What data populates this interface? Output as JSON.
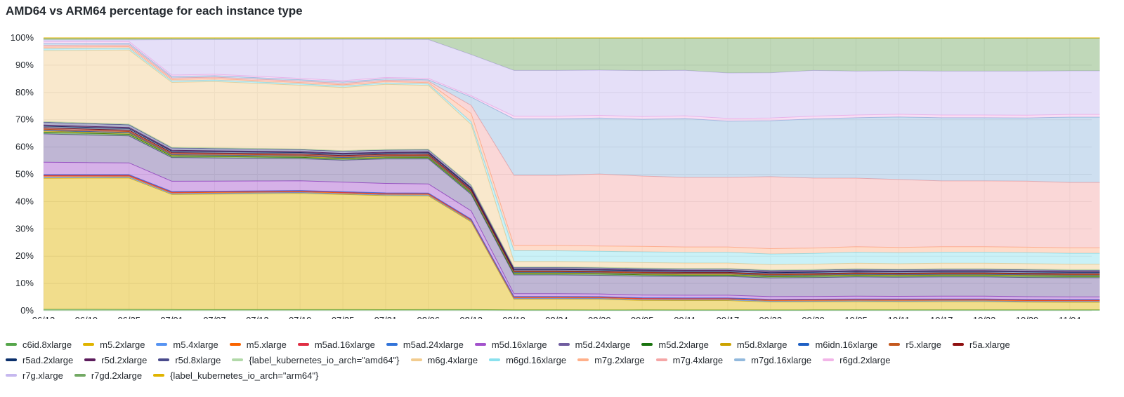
{
  "title": "AMD64 vs ARM64 percentage for each instance type",
  "chart_data": {
    "type": "area",
    "stacked": "percent",
    "title": "AMD64 vs ARM64 percentage for each instance type",
    "y_ticks": [
      "0%",
      "10%",
      "20%",
      "30%",
      "40%",
      "50%",
      "60%",
      "70%",
      "80%",
      "90%",
      "100%"
    ],
    "ylim": [
      0,
      100
    ],
    "x_ticks": [
      "06/13",
      "06/19",
      "06/25",
      "07/01",
      "07/07",
      "07/13",
      "07/19",
      "07/25",
      "07/31",
      "08/06",
      "08/12",
      "08/18",
      "08/24",
      "08/30",
      "09/05",
      "09/11",
      "09/17",
      "09/23",
      "09/29",
      "10/05",
      "10/11",
      "10/17",
      "10/23",
      "10/29",
      "11/04"
    ],
    "x": [
      0,
      1,
      2,
      3,
      4,
      5,
      6,
      7,
      8,
      9,
      10,
      11,
      12,
      13,
      14,
      15,
      16,
      17,
      18,
      19,
      20,
      21,
      22,
      23,
      24,
      24.7
    ],
    "grid": true,
    "legend_position": "bottom",
    "series": [
      {
        "name": "c6id.8xlarge",
        "color": "#56a64b",
        "values": [
          0.4,
          0.4,
          0.4,
          0.4,
          0.4,
          0.4,
          0.4,
          0.4,
          0.4,
          0.4,
          0.4,
          0.3,
          0.3,
          0.3,
          0.3,
          0.3,
          0.3,
          0.3,
          0.3,
          0.3,
          0.3,
          0.3,
          0.3,
          0.3,
          0.3,
          0.3
        ]
      },
      {
        "name": "m5.2xlarge",
        "color": "#e0b400",
        "values": [
          37,
          38,
          39,
          39,
          40,
          41,
          42,
          42,
          42,
          41,
          32,
          4,
          4,
          4,
          3.5,
          3.5,
          3.5,
          3,
          3,
          3,
          3,
          3,
          3,
          2.8,
          2.8,
          2.8
        ]
      },
      {
        "name": "m5.4xlarge",
        "color": "#5794f2",
        "values": [
          0.3,
          0.3,
          0.3,
          0.3,
          0.3,
          0.3,
          0.3,
          0.3,
          0.3,
          0.3,
          0.3,
          0.3,
          0.3,
          0.3,
          0.3,
          0.3,
          0.3,
          0.3,
          0.3,
          0.3,
          0.3,
          0.3,
          0.3,
          0.3,
          0.3,
          0.3
        ]
      },
      {
        "name": "m5.xlarge",
        "color": "#fa6400",
        "values": [
          0.3,
          0.3,
          0.3,
          0.3,
          0.3,
          0.3,
          0.3,
          0.3,
          0.3,
          0.3,
          0.3,
          0.3,
          0.3,
          0.3,
          0.3,
          0.3,
          0.3,
          0.3,
          0.3,
          0.3,
          0.3,
          0.3,
          0.3,
          0.3,
          0.3,
          0.3
        ]
      },
      {
        "name": "m5ad.16xlarge",
        "color": "#e02f44",
        "values": [
          0.2,
          0.2,
          0.2,
          0.2,
          0.2,
          0.2,
          0.2,
          0.2,
          0.2,
          0.2,
          0.2,
          0.2,
          0.2,
          0.2,
          0.2,
          0.2,
          0.2,
          0.2,
          0.2,
          0.2,
          0.2,
          0.2,
          0.2,
          0.2,
          0.2,
          0.2
        ]
      },
      {
        "name": "m5ad.24xlarge",
        "color": "#3274d9",
        "values": [
          0.2,
          0.2,
          0.2,
          0.2,
          0.2,
          0.2,
          0.2,
          0.2,
          0.2,
          0.2,
          0.2,
          0.2,
          0.2,
          0.2,
          0.2,
          0.2,
          0.2,
          0.2,
          0.2,
          0.2,
          0.2,
          0.2,
          0.2,
          0.2,
          0.2,
          0.2
        ]
      },
      {
        "name": "m5d.16xlarge",
        "color": "#a352cc",
        "values": [
          3.5,
          3.5,
          3.5,
          3.5,
          3.5,
          3.5,
          3.5,
          3.5,
          3.5,
          3.3,
          3,
          1,
          1,
          1,
          1,
          1,
          1,
          1,
          1,
          1,
          1,
          1,
          1,
          1,
          1,
          1
        ]
      },
      {
        "name": "m5d.24xlarge",
        "color": "#705da0",
        "values": [
          8,
          8,
          8,
          8,
          8,
          8,
          8,
          8,
          9,
          9,
          6,
          7,
          7,
          7,
          7,
          7,
          7,
          7,
          7,
          7,
          7,
          7,
          7,
          7,
          7,
          7
        ]
      },
      {
        "name": "m5d.2xlarge",
        "color": "#19730e",
        "values": [
          0.5,
          0.5,
          0.5,
          0.5,
          0.5,
          0.5,
          0.5,
          0.5,
          0.5,
          0.5,
          0.5,
          0.5,
          0.5,
          0.5,
          0.5,
          0.5,
          0.5,
          0.5,
          0.5,
          0.5,
          0.5,
          0.5,
          0.5,
          0.5,
          0.5,
          0.5
        ]
      },
      {
        "name": "m5d.8xlarge",
        "color": "#cca300",
        "values": [
          0.3,
          0.3,
          0.3,
          0.3,
          0.3,
          0.3,
          0.3,
          0.3,
          0.3,
          0.3,
          0.3,
          0.3,
          0.3,
          0.3,
          0.3,
          0.3,
          0.3,
          0.3,
          0.3,
          0.3,
          0.3,
          0.3,
          0.3,
          0.3,
          0.3,
          0.3
        ]
      },
      {
        "name": "m6idn.16xlarge",
        "color": "#1f60c4",
        "values": [
          0.2,
          0.2,
          0.2,
          0.2,
          0.2,
          0.2,
          0.2,
          0.2,
          0.2,
          0.2,
          0.2,
          0.2,
          0.2,
          0.2,
          0.2,
          0.2,
          0.2,
          0.2,
          0.2,
          0.2,
          0.2,
          0.2,
          0.2,
          0.2,
          0.2,
          0.2
        ]
      },
      {
        "name": "r5.xlarge",
        "color": "#c4591f",
        "values": [
          0.3,
          0.3,
          0.3,
          0.3,
          0.3,
          0.3,
          0.3,
          0.3,
          0.3,
          0.3,
          0.3,
          0.2,
          0.2,
          0.2,
          0.2,
          0.2,
          0.2,
          0.2,
          0.2,
          0.2,
          0.2,
          0.2,
          0.2,
          0.2,
          0.2,
          0.2
        ]
      },
      {
        "name": "r5a.xlarge",
        "color": "#8f1010",
        "values": [
          0.4,
          0.4,
          0.4,
          0.4,
          0.4,
          0.4,
          0.4,
          0.4,
          0.4,
          0.4,
          0.4,
          0.3,
          0.3,
          0.3,
          0.3,
          0.3,
          0.3,
          0.3,
          0.3,
          0.3,
          0.3,
          0.3,
          0.3,
          0.3,
          0.3,
          0.3
        ]
      },
      {
        "name": "r5ad.2xlarge",
        "color": "#0a2f6b",
        "values": [
          0.5,
          0.5,
          0.5,
          0.5,
          0.5,
          0.5,
          0.5,
          0.5,
          0.5,
          0.5,
          0.5,
          0.5,
          0.5,
          0.5,
          0.5,
          0.5,
          0.5,
          0.5,
          0.5,
          0.5,
          0.5,
          0.5,
          0.5,
          0.5,
          0.5,
          0.5
        ]
      },
      {
        "name": "r5d.2xlarge",
        "color": "#5c1c5c",
        "values": [
          0.3,
          0.3,
          0.3,
          0.3,
          0.3,
          0.3,
          0.3,
          0.3,
          0.3,
          0.3,
          0.3,
          0.3,
          0.3,
          0.3,
          0.3,
          0.3,
          0.3,
          0.3,
          0.3,
          0.3,
          0.3,
          0.3,
          0.3,
          0.3,
          0.3,
          0.3
        ]
      },
      {
        "name": "r5d.8xlarge",
        "color": "#4a4b8c",
        "values": [
          0.8,
          0.8,
          0.8,
          0.8,
          0.8,
          0.8,
          0.8,
          0.8,
          0.8,
          0.8,
          0.8,
          0.5,
          0.5,
          0.5,
          0.5,
          0.5,
          0.5,
          0.5,
          0.5,
          0.5,
          0.5,
          0.5,
          0.5,
          0.5,
          0.5,
          0.5
        ]
      },
      {
        "name": "{label_kubernetes_io_arch=\"amd64\"}",
        "color": "#b2d9a9",
        "values": [
          0.2,
          0.2,
          0.2,
          0.2,
          0.2,
          0.2,
          0.2,
          0.2,
          0.2,
          0.2,
          0.2,
          0.2,
          0.2,
          0.2,
          0.2,
          0.2,
          0.2,
          0.2,
          0.2,
          0.2,
          0.2,
          0.2,
          0.2,
          0.2,
          0.2,
          0.2
        ]
      },
      {
        "name": "m6g.4xlarge",
        "color": "#f2cc8f",
        "values": [
          20,
          21,
          22,
          22,
          23,
          23,
          23,
          23,
          24,
          23,
          22,
          2,
          2,
          2,
          2,
          2,
          2,
          2,
          2,
          2,
          2,
          2,
          2,
          2,
          2,
          2
        ]
      },
      {
        "name": "m6gd.16xlarge",
        "color": "#8ae1ee",
        "values": [
          0.5,
          0.5,
          0.5,
          0.5,
          0.5,
          0.5,
          0.5,
          0.5,
          0.5,
          0.5,
          1,
          4,
          4,
          4,
          4,
          4,
          4,
          4,
          4,
          4,
          4,
          4,
          4,
          4,
          4,
          4
        ]
      },
      {
        "name": "m7g.2xlarge",
        "color": "#ffb08a",
        "values": [
          0.5,
          0.5,
          0.5,
          0.5,
          0.5,
          0.5,
          0.5,
          0.5,
          0.5,
          0.5,
          3,
          2,
          2,
          2,
          2,
          2,
          2,
          2,
          2,
          2,
          2,
          2,
          2,
          2,
          2,
          2
        ]
      },
      {
        "name": "m7g.4xlarge",
        "color": "#f5a6a6",
        "values": [
          0.5,
          0.5,
          0.5,
          0.5,
          0.5,
          0.5,
          0.5,
          0.5,
          0.5,
          0.5,
          3,
          26,
          26,
          27,
          26,
          26,
          26,
          27,
          26,
          25,
          25,
          24,
          24,
          24,
          24,
          24
        ]
      },
      {
        "name": "m7gd.16xlarge",
        "color": "#92b9dd",
        "values": [
          0.5,
          0.5,
          0.5,
          0.5,
          0.5,
          0.5,
          0.5,
          0.5,
          0.5,
          0.5,
          3,
          21,
          21,
          21,
          21,
          22,
          21,
          21,
          22,
          22,
          23,
          23,
          23,
          23,
          24,
          24
        ]
      },
      {
        "name": "r6gd.2xlarge",
        "color": "#f2b5e8",
        "values": [
          0.5,
          0.5,
          0.5,
          0.5,
          0.5,
          0.5,
          0.5,
          0.5,
          0.5,
          0.5,
          0.5,
          1,
          1,
          1,
          1,
          1,
          1,
          1,
          1,
          1,
          1,
          1,
          1,
          1,
          1,
          1
        ]
      },
      {
        "name": "r7g.xlarge",
        "color": "#c6b8ef",
        "values": [
          0.5,
          0.5,
          0.5,
          12,
          12,
          13,
          14,
          15,
          14,
          14,
          15,
          17,
          17,
          17,
          17,
          17,
          17,
          17,
          17,
          16,
          16,
          16,
          16,
          16,
          16,
          16
        ]
      },
      {
        "name": "r7gd.2xlarge",
        "color": "#73a964",
        "values": [
          0.5,
          0.5,
          0.5,
          0.5,
          0.5,
          0.5,
          0.5,
          0.5,
          0.5,
          0.5,
          6,
          12,
          12,
          12,
          12,
          12,
          13,
          13,
          12,
          12,
          12,
          12,
          12,
          12,
          12,
          12
        ]
      },
      {
        "name": "{label_kubernetes_io_arch=\"arm64\"}",
        "color": "#e0b400",
        "values": [
          0.1,
          0.1,
          0.1,
          0.1,
          0.1,
          0.1,
          0.1,
          0.1,
          0.1,
          0.1,
          0.1,
          0.1,
          0.1,
          0.1,
          0.1,
          0.1,
          0.1,
          0.1,
          0.1,
          0.1,
          0.1,
          0.1,
          0.1,
          0.1,
          0.1,
          0.1
        ]
      }
    ]
  }
}
